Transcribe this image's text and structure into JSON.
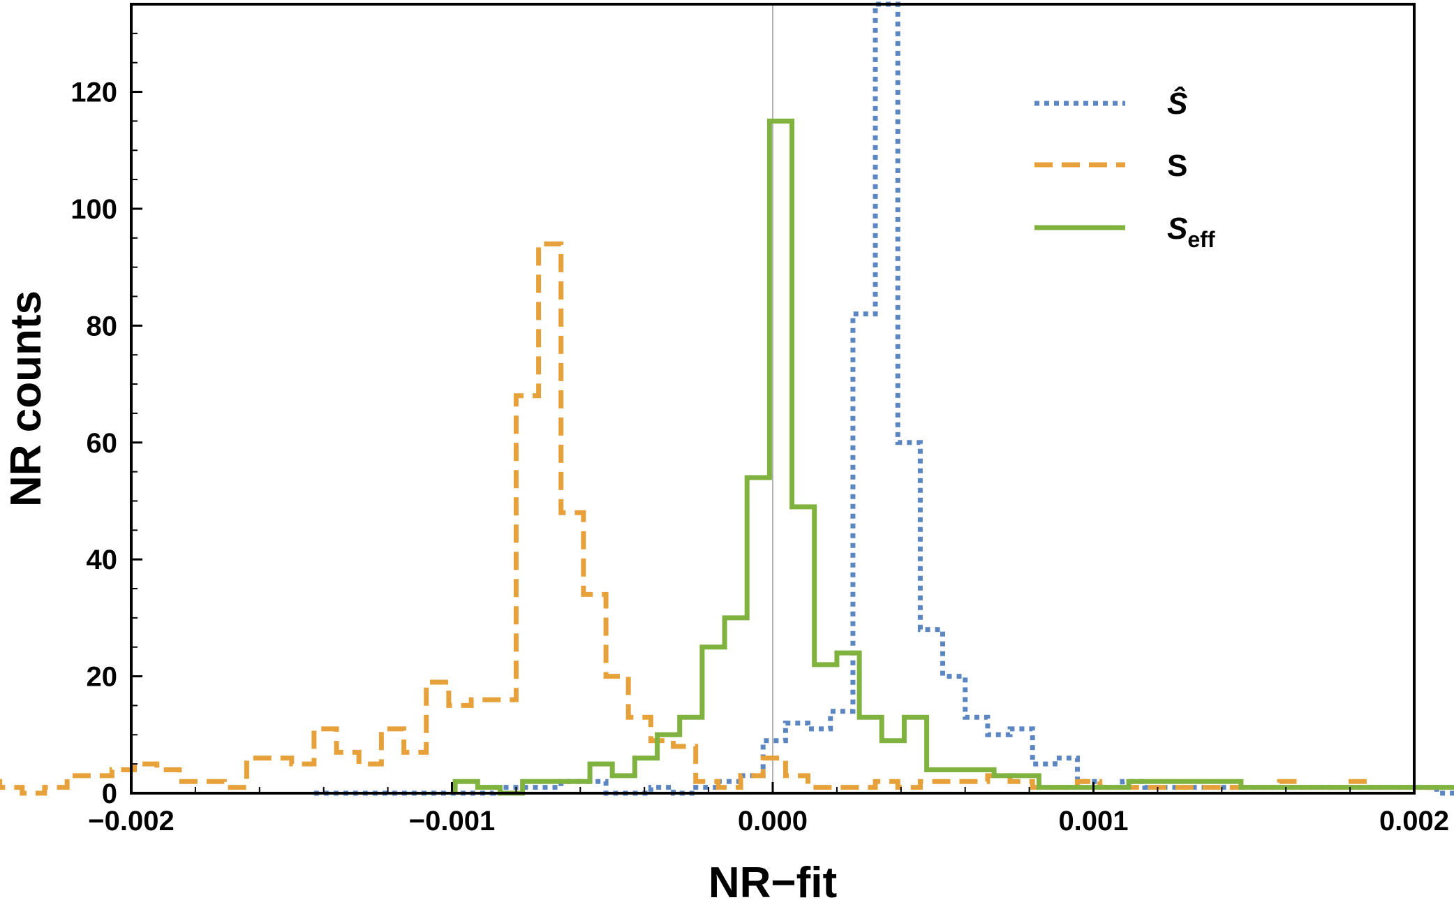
{
  "chart_data": {
    "type": "histogram",
    "xlabel": "NR−fit",
    "ylabel": "NR counts",
    "xlim": [
      -0.002,
      0.002
    ],
    "ylim": [
      0,
      135
    ],
    "x_ticks": [
      "−0.002",
      "−0.001",
      "0.000",
      "0.001",
      "0.002"
    ],
    "x_tick_values": [
      -0.002,
      -0.001,
      0.0,
      0.001,
      0.002
    ],
    "y_ticks": [
      "0",
      "20",
      "40",
      "60",
      "80",
      "100",
      "120"
    ],
    "y_tick_values": [
      0,
      20,
      40,
      60,
      80,
      100,
      120
    ],
    "bin_width": 7e-05,
    "legend_position": "top-right",
    "series": [
      {
        "name": "Ŝ",
        "style": "dotted",
        "color": "#5b86c2",
        "bin_start": -0.00143,
        "counts": [
          0,
          0,
          0,
          0,
          0,
          0,
          0,
          0,
          1,
          1,
          1,
          2,
          2,
          0,
          0,
          1,
          0,
          1,
          2,
          3,
          9,
          12,
          11,
          14,
          82,
          135,
          60,
          28,
          20,
          13,
          10,
          11,
          5,
          6,
          2,
          1,
          2,
          1,
          1,
          1,
          1,
          1,
          1,
          1,
          1,
          1,
          1,
          1,
          1,
          1,
          0,
          0,
          0,
          0,
          0
        ]
      },
      {
        "name": "S",
        "style": "dashed",
        "color": "#e6a13a",
        "bin_start": -0.00248,
        "counts": [
          2,
          1,
          0,
          1,
          3,
          3,
          4,
          5,
          4,
          2,
          2,
          1,
          6,
          6,
          5,
          11,
          7,
          5,
          11,
          7,
          19,
          15,
          16,
          16,
          68,
          94,
          48,
          34,
          20,
          13,
          9,
          8,
          2,
          1,
          3,
          6,
          3,
          1,
          1,
          1,
          2,
          1,
          2,
          2,
          2,
          3,
          2,
          1,
          1,
          2,
          1,
          1,
          1,
          1,
          1,
          1,
          1,
          1,
          2,
          1,
          1,
          2,
          1,
          1,
          1,
          1,
          1
        ]
      },
      {
        "name": "S_eff",
        "style": "solid",
        "color": "#7fb23f",
        "bin_start": -0.00099,
        "counts": [
          2,
          1,
          0,
          2,
          2,
          2,
          5,
          3,
          6,
          10,
          13,
          25,
          30,
          54,
          115,
          49,
          22,
          24,
          13,
          9,
          13,
          4,
          4,
          4,
          3,
          3,
          1,
          1,
          1,
          1,
          2,
          2,
          2,
          2,
          2,
          1,
          1,
          1,
          1,
          1,
          1,
          1,
          1,
          1,
          1,
          1,
          1
        ]
      }
    ]
  }
}
